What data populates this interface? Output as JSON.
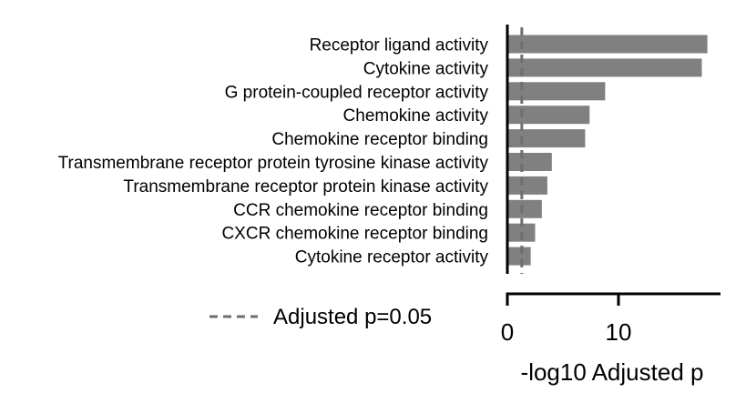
{
  "chart_data": {
    "type": "bar",
    "orientation": "horizontal",
    "categories": [
      "Receptor ligand activity",
      "Cytokine activity",
      "G protein-coupled receptor activity",
      "Chemokine activity",
      "Chemokine receptor binding",
      "Transmembrane receptor protein tyrosine kinase activity",
      "Transmembrane receptor protein kinase activity",
      "CCR chemokine receptor binding",
      "CXCR chemokine receptor binding",
      "Cytokine receptor activity"
    ],
    "values": [
      18.0,
      17.5,
      8.8,
      7.4,
      7.0,
      4.0,
      3.6,
      3.1,
      2.5,
      2.1
    ],
    "xlabel": "-log10 Adjusted p",
    "ylabel": "",
    "xlim": [
      0,
      19
    ],
    "xticks": [
      0,
      10
    ],
    "threshold": {
      "value": 1.3,
      "label": "Adjusted p=0.05"
    },
    "bar_color": "#808080",
    "threshold_color": "#6e6e6e",
    "grid": false,
    "legend_position": "bottom-left"
  }
}
